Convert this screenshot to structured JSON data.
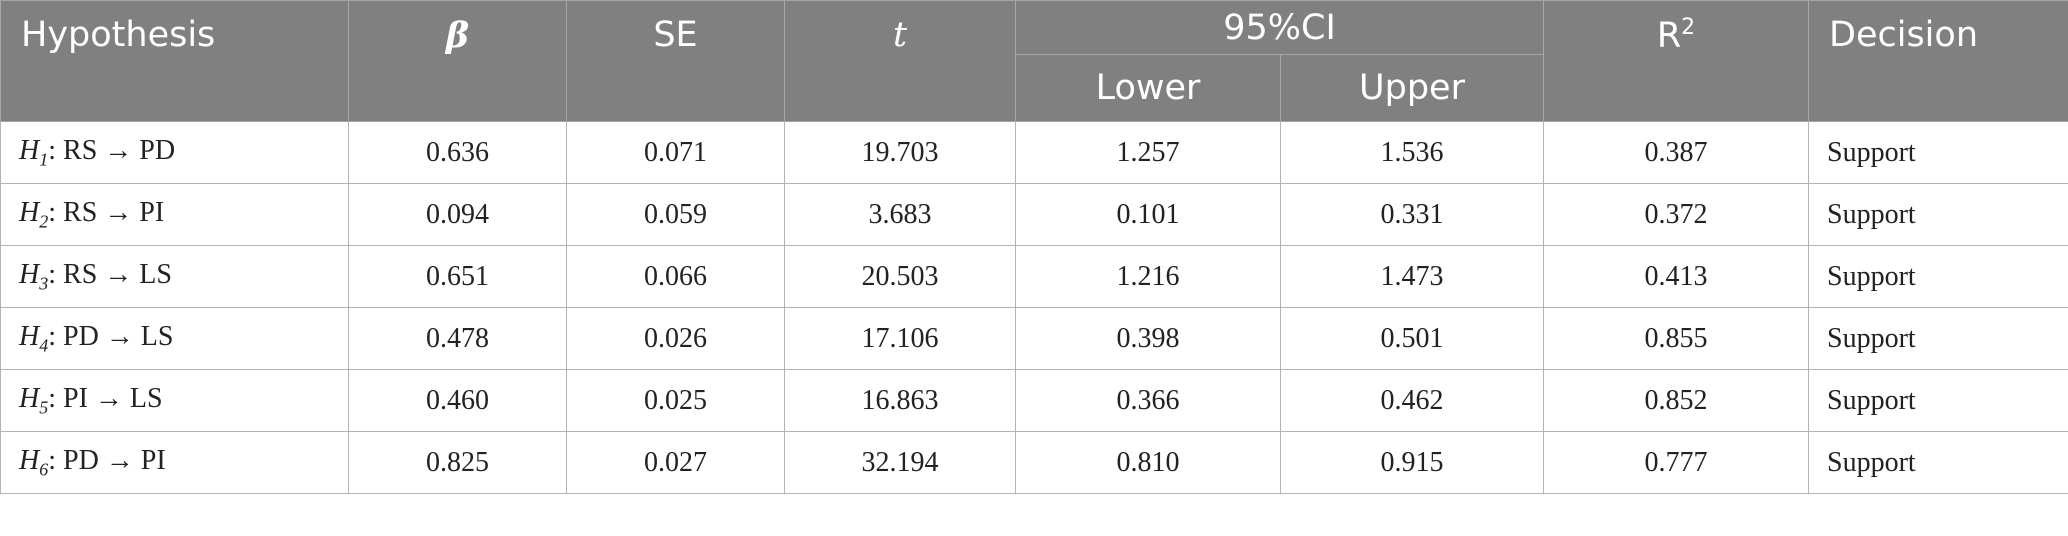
{
  "header": {
    "hypothesis": "Hypothesis",
    "beta": "β",
    "se": "SE",
    "t": "t",
    "ci": "95%CI",
    "lower": "Lower",
    "upper": "Upper",
    "r2_base": "R",
    "r2_sup": "2",
    "decision": "Decision"
  },
  "rows": [
    {
      "h": "H",
      "sub": "1",
      "path": ": RS → PD",
      "beta": "0.636",
      "se": "0.071",
      "t": "19.703",
      "lower": "1.257",
      "upper": "1.536",
      "r2": "0.387",
      "decision": "Support"
    },
    {
      "h": "H",
      "sub": "2",
      "path": ": RS → PI",
      "beta": "0.094",
      "se": "0.059",
      "t": "3.683",
      "lower": "0.101",
      "upper": "0.331",
      "r2": "0.372",
      "decision": "Support"
    },
    {
      "h": "H",
      "sub": "3",
      "path": ": RS → LS",
      "beta": "0.651",
      "se": "0.066",
      "t": "20.503",
      "lower": "1.216",
      "upper": "1.473",
      "r2": "0.413",
      "decision": "Support"
    },
    {
      "h": "H",
      "sub": "4",
      "path": ": PD → LS",
      "beta": "0.478",
      "se": "0.026",
      "t": "17.106",
      "lower": "0.398",
      "upper": "0.501",
      "r2": "0.855",
      "decision": "Support"
    },
    {
      "h": "H",
      "sub": "5",
      "path": ": PI → LS",
      "beta": "0.460",
      "se": "0.025",
      "t": "16.863",
      "lower": "0.366",
      "upper": "0.462",
      "r2": "0.852",
      "decision": "Support"
    },
    {
      "h": "H",
      "sub": "6",
      "path": ": PD → PI",
      "beta": "0.825",
      "se": "0.027",
      "t": "32.194",
      "lower": "0.810",
      "upper": "0.915",
      "r2": "0.777",
      "decision": "Support"
    }
  ]
}
